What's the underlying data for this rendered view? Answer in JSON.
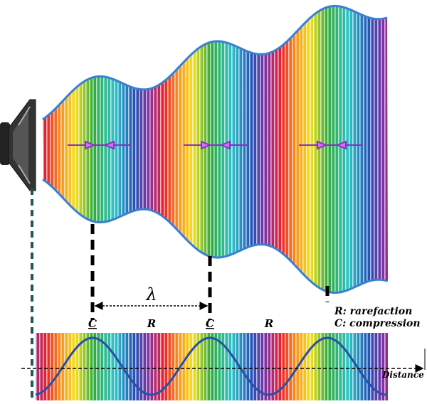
{
  "labels": {
    "wavelength": "λ",
    "compression_1": "C",
    "rarefaction_1": "R",
    "compression_2": "C",
    "rarefaction_2": "R"
  },
  "legend": {
    "rarefaction": "R: rarefaction",
    "compression": "C: compression"
  },
  "axis": {
    "label": "Distance"
  }
}
